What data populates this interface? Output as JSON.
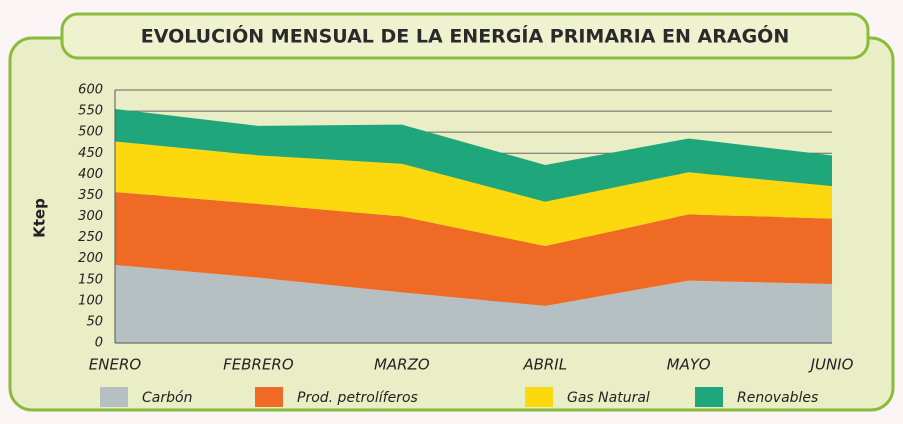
{
  "chart_data": {
    "type": "stacked_area",
    "title": "EVOLUCIÓN MENSUAL DE LA ENERGÍA PRIMARIA EN ARAGÓN",
    "ylabel": "Ktep",
    "categories": [
      "ENERO",
      "FEBRERO",
      "MARZO",
      "ABRIL",
      "MAYO",
      "JUNIO"
    ],
    "series": [
      {
        "name": "Carbón",
        "color": "#b6bfc1",
        "values": [
          185,
          155,
          120,
          88,
          148,
          140
        ]
      },
      {
        "name": "Prod. petrolíferos",
        "color": "#ef6a24",
        "values": [
          173,
          175,
          180,
          142,
          157,
          155
        ]
      },
      {
        "name": "Gas Natural",
        "color": "#fcd80f",
        "values": [
          120,
          115,
          125,
          105,
          100,
          77
        ]
      },
      {
        "name": "Renovables",
        "color": "#1fa67a",
        "values": [
          77,
          70,
          93,
          87,
          80,
          73
        ]
      }
    ],
    "ylim": [
      0,
      600
    ],
    "yticks": [
      0,
      50,
      100,
      150,
      200,
      250,
      300,
      350,
      400,
      450,
      500,
      550,
      600
    ],
    "grid": true
  }
}
